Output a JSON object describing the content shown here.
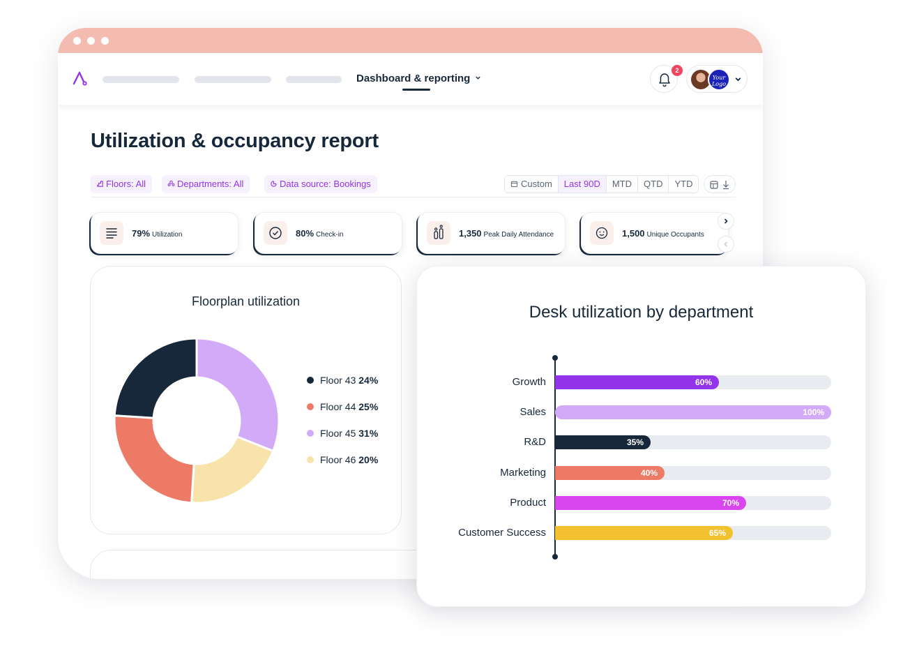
{
  "nav": {
    "active_link": "Dashboard & reporting",
    "notification_count": "2",
    "company_logo_text": "Your Logo"
  },
  "page": {
    "title": "Utilization & occupancy report"
  },
  "filters": [
    {
      "label": "Floors: All",
      "icon": "floor-icon"
    },
    {
      "label": "Departments: All",
      "icon": "department-icon"
    },
    {
      "label": "Data source: Bookings",
      "icon": "data-source-icon"
    }
  ],
  "date_ranges": {
    "options": [
      "Custom",
      "Last 90D",
      "MTD",
      "QTD",
      "YTD"
    ],
    "selected": "Last 90D"
  },
  "kpis": [
    {
      "value": "79%",
      "label": "Utilization",
      "icon": "list-icon"
    },
    {
      "value": "80%",
      "label": "Check-in",
      "icon": "check-circle-icon"
    },
    {
      "value": "1,350",
      "label": "Peak Daily Attendance",
      "icon": "attendance-icon"
    },
    {
      "value": "1,500",
      "label": "Unique Occupants",
      "icon": "occupants-icon"
    }
  ],
  "floorplan": {
    "title": "Floorplan utilization",
    "chart_data": {
      "type": "pie",
      "title": "Floorplan utilization",
      "categories": [
        "Floor 43",
        "Floor 44",
        "Floor 45",
        "Floor 46"
      ],
      "values": [
        24,
        25,
        31,
        20
      ],
      "labels": [
        "24%",
        "25%",
        "31%",
        "20%"
      ],
      "colors": [
        "#17283b",
        "#ec7a66",
        "#d3aaf7",
        "#f8e4ab"
      ],
      "legend": "right"
    }
  },
  "desk": {
    "title": "Desk utilization by department",
    "chart_data": {
      "type": "bar",
      "orientation": "horizontal",
      "title": "Desk utilization by department",
      "categories": [
        "Growth",
        "Sales",
        "R&D",
        "Marketing",
        "Product",
        "Customer Success"
      ],
      "values": [
        60,
        100,
        35,
        40,
        70,
        65
      ],
      "labels": [
        "60%",
        "100%",
        "35%",
        "40%",
        "70%",
        "65%"
      ],
      "colors": [
        "#9333ea",
        "#d3aaf7",
        "#17283b",
        "#ec7a66",
        "#d946ef",
        "#f3c02f"
      ],
      "xlim": [
        0,
        100
      ]
    }
  }
}
